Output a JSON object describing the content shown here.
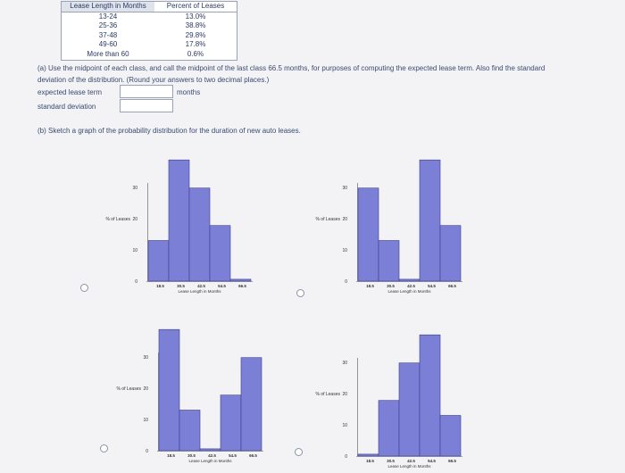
{
  "table": {
    "headers": [
      "Lease Length in Months",
      "Percent of Leases"
    ],
    "rows": [
      {
        "label": "13-24",
        "value": "13.0%"
      },
      {
        "label": "25-36",
        "value": "38.8%"
      },
      {
        "label": "37-48",
        "value": "29.8%"
      },
      {
        "label": "49-60",
        "value": "17.8%"
      },
      {
        "label": "More than 60",
        "value": "0.6%"
      }
    ]
  },
  "part_a": {
    "line1": "(a) Use the midpoint of each class, and call the midpoint of the last class 66.5 months, for purposes of computing the expected lease term. Also find the standard",
    "line2": "deviation of the distribution. (Round your answers to two decimal places.)",
    "expected_label": "expected lease term",
    "expected_unit": "months",
    "sd_label": "standard deviation"
  },
  "part_b": {
    "prompt": "(b) Sketch a graph of the probability distribution for the duration of new auto leases."
  },
  "chart_data": [
    {
      "type": "bar",
      "categories": [
        "18.5",
        "30.5",
        "42.5",
        "54.5",
        "66.5"
      ],
      "values": [
        13.0,
        38.8,
        29.8,
        17.8,
        0.6
      ],
      "ylabel": "% of Leases",
      "xlabel": "Lease Length in Months",
      "yticks": [
        10,
        20,
        30
      ],
      "ylim": [
        0,
        40
      ]
    },
    {
      "type": "bar",
      "categories": [
        "18.5",
        "30.5",
        "42.5",
        "54.5",
        "66.5"
      ],
      "values": [
        29.8,
        13.0,
        0.6,
        38.8,
        17.8
      ],
      "ylabel": "% of Leases",
      "xlabel": "Lease Length in Months",
      "yticks": [
        10,
        20,
        30
      ],
      "ylim": [
        0,
        40
      ]
    },
    {
      "type": "bar",
      "categories": [
        "18.5",
        "30.5",
        "42.5",
        "54.5",
        "66.5"
      ],
      "values": [
        38.8,
        13.0,
        0.6,
        17.8,
        29.8
      ],
      "ylabel": "% of Leases",
      "xlabel": "Lease Length in Months",
      "yticks": [
        10,
        20,
        30
      ],
      "ylim": [
        0,
        40
      ]
    },
    {
      "type": "bar",
      "categories": [
        "18.5",
        "30.5",
        "42.5",
        "54.5",
        "66.5"
      ],
      "values": [
        0.6,
        17.8,
        29.8,
        38.8,
        13.0
      ],
      "ylabel": "% of Leases",
      "xlabel": "Lease Length in Months",
      "yticks": [
        10,
        20,
        30
      ],
      "ylim": [
        0,
        40
      ]
    }
  ]
}
